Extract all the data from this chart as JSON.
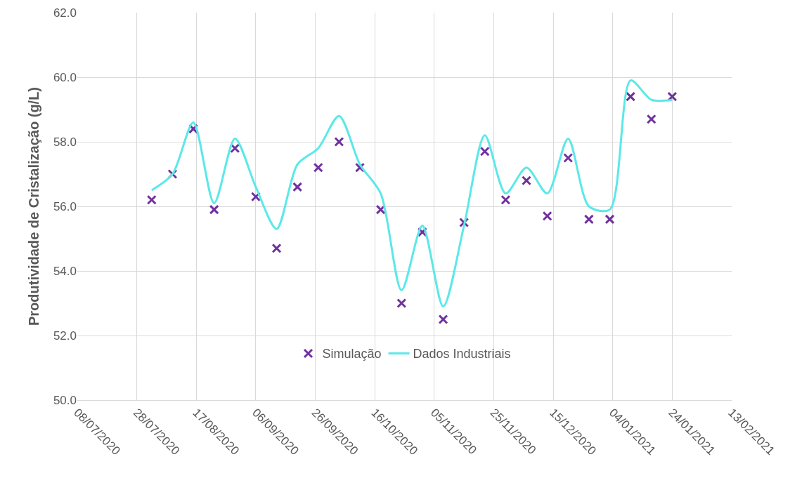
{
  "chart_data": {
    "type": "line",
    "ylabel": "Produtividade de Cristalização (g/L)",
    "x": [
      "2020-08-02",
      "2020-08-09",
      "2020-08-16",
      "2020-08-23",
      "2020-08-30",
      "2020-09-06",
      "2020-09-13",
      "2020-09-20",
      "2020-09-27",
      "2020-10-04",
      "2020-10-11",
      "2020-10-18",
      "2020-10-25",
      "2020-11-01",
      "2020-11-08",
      "2020-11-15",
      "2020-11-22",
      "2020-11-29",
      "2020-12-06",
      "2020-12-13",
      "2020-12-20",
      "2020-12-27",
      "2021-01-03",
      "2021-01-10",
      "2021-01-17",
      "2021-01-24"
    ],
    "series": [
      {
        "name": "Simulação",
        "type": "scatter",
        "marker": "cross",
        "color": "#7030a0",
        "values": [
          56.2,
          57.0,
          58.4,
          55.9,
          57.8,
          56.3,
          54.7,
          56.6,
          57.2,
          58.0,
          57.2,
          55.9,
          53.0,
          55.2,
          52.5,
          55.5,
          57.7,
          56.2,
          56.8,
          55.7,
          57.5,
          55.6,
          55.6,
          59.4,
          58.7,
          59.4
        ]
      },
      {
        "name": "Dados Industriais",
        "marker": "none",
        "line_style": "solid",
        "color": "#5ce8e8",
        "values": [
          56.5,
          57.0,
          58.6,
          56.1,
          58.1,
          56.6,
          55.3,
          57.3,
          57.8,
          58.8,
          57.3,
          56.4,
          53.4,
          55.4,
          52.9,
          55.4,
          58.2,
          56.4,
          57.2,
          56.4,
          58.1,
          56.0,
          55.9,
          59.9,
          59.3,
          59.3
        ]
      }
    ],
    "xlim": [
      "2020-07-08",
      "2021-02-13"
    ],
    "xticks": [
      {
        "value": "2020-07-08",
        "label": "08/07/2020"
      },
      {
        "value": "2020-07-28",
        "label": "28/07/2020"
      },
      {
        "value": "2020-08-17",
        "label": "17/08/2020"
      },
      {
        "value": "2020-09-06",
        "label": "06/09/2020"
      },
      {
        "value": "2020-09-26",
        "label": "26/09/2020"
      },
      {
        "value": "2020-10-16",
        "label": "16/10/2020"
      },
      {
        "value": "2020-11-05",
        "label": "05/11/2020"
      },
      {
        "value": "2020-11-25",
        "label": "25/11/2020"
      },
      {
        "value": "2020-12-15",
        "label": "15/12/2020"
      },
      {
        "value": "2021-01-04",
        "label": "04/01/2021"
      },
      {
        "value": "2021-01-24",
        "label": "24/01/2021"
      },
      {
        "value": "2021-02-13",
        "label": "13/02/2021"
      }
    ],
    "ylim": [
      50,
      62
    ],
    "yticks": [
      {
        "value": 50,
        "label": "50.0"
      },
      {
        "value": 52,
        "label": "52.0"
      },
      {
        "value": 54,
        "label": "54.0"
      },
      {
        "value": 56,
        "label": "56.0"
      },
      {
        "value": 58,
        "label": "58.0"
      },
      {
        "value": 60,
        "label": "60.0"
      },
      {
        "value": 62,
        "label": "62.0"
      }
    ],
    "grid": true,
    "legend": "bottom"
  }
}
